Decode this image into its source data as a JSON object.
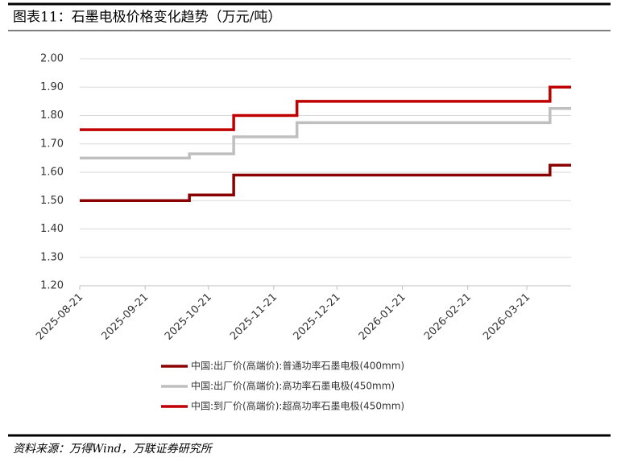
{
  "chart_data": {
    "type": "line",
    "line_shape": "step",
    "title": "图表11：石墨电极价格变化趋势（万元/吨）",
    "source": "资料来源：万得Wind，万联证券研究所",
    "x": [
      "2025-08-21",
      "2025-10-12",
      "2025-11-02",
      "2025-12-02",
      "2026-04-01",
      "2026-04-11"
    ],
    "series": [
      {
        "name": "中国:出厂价(高端价):普通功率石墨电极(400mm)",
        "color": "#8b0000",
        "values": [
          1.5,
          1.52,
          1.59,
          1.59,
          1.625,
          1.625
        ]
      },
      {
        "name": "中国:出厂价(高端价):高功率石墨电极(450mm)",
        "color": "#bfbfbf",
        "values": [
          1.65,
          1.665,
          1.725,
          1.775,
          1.825,
          1.825
        ]
      },
      {
        "name": "中国:到厂价(高端价):超高功率石墨电极(450mm)",
        "color": "#c00000",
        "values": [
          1.75,
          1.75,
          1.8,
          1.85,
          1.9,
          1.9
        ]
      }
    ],
    "xlim": [
      "2025-08-21",
      "2026-04-11"
    ],
    "xticks": [
      "2025-08-21",
      "2025-09-21",
      "2025-10-21",
      "2025-11-21",
      "2025-12-21",
      "2026-01-21",
      "2026-02-21",
      "2026-03-21"
    ],
    "ylim": [
      1.2,
      2.0
    ],
    "yticks": [
      {
        "value": 1.2,
        "label": "1.20"
      },
      {
        "value": 1.3,
        "label": "1.30"
      },
      {
        "value": 1.4,
        "label": "1.40"
      },
      {
        "value": 1.5,
        "label": "1.50"
      },
      {
        "value": 1.6,
        "label": "1.60"
      },
      {
        "value": 1.7,
        "label": "1.70"
      },
      {
        "value": 1.8,
        "label": "1.80"
      },
      {
        "value": 1.9,
        "label": "1.90"
      },
      {
        "value": 2.0,
        "label": "2.00"
      }
    ],
    "grid": true
  }
}
